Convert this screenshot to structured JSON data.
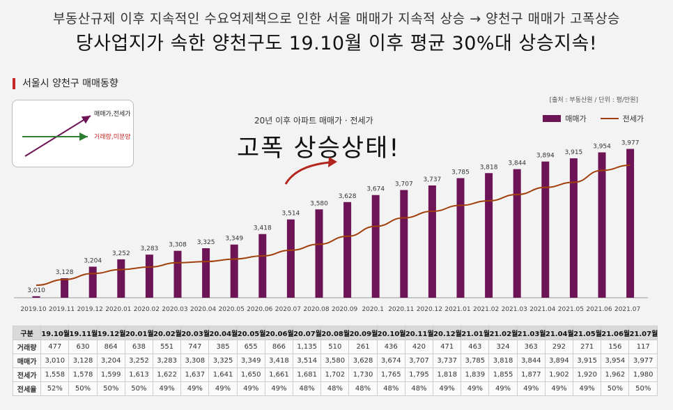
{
  "headline": {
    "line1": "부동산규제 이후 지속적인 수요억제책으로 인한 서울 매매가 지속적 상승 → 양천구 매매가 고폭상승",
    "line2": "당사업지가 속한 양천구도 19.10월 이후 평균 30%대 상승지속!"
  },
  "section_title": "서울시 양천구 매매동향",
  "source_note": "[출처 : 부동산원 / 단위 : 평/만원]",
  "inset": {
    "label_up": "매매가,전세가",
    "label_flat": "거래량,미분양",
    "colors": {
      "up": "#6d1456",
      "flat": "#2e7d32",
      "label_flat": "#c62828"
    }
  },
  "annotation": {
    "small": "20년 이후 아파트 매매가 · 전세가",
    "big": "고폭 상승상태!"
  },
  "chart_data": {
    "type": "bar",
    "categories": [
      "2019.10",
      "2019.11",
      "2019.12",
      "2020.01",
      "2020.02",
      "2020.03",
      "2020.04",
      "2020.05",
      "2020.06",
      "2020.07",
      "2020.08",
      "2020.09",
      "2020.1",
      "2020.11",
      "2020.12",
      "2021.01",
      "2021.02",
      "2021.03",
      "2021.04",
      "2021.05",
      "2021.06",
      "2021.07"
    ],
    "series": [
      {
        "name": "매매가",
        "type": "bar",
        "color": "#6d1456",
        "values": [
          3010,
          3128,
          3204,
          3252,
          3283,
          3308,
          3325,
          3349,
          3418,
          3514,
          3580,
          3628,
          3674,
          3707,
          3737,
          3785,
          3818,
          3844,
          3894,
          3915,
          3954,
          3977
        ],
        "labels": [
          "3,010",
          "3,128",
          "3,204",
          "3,252",
          "3,283",
          "3,308",
          "3,325",
          "3,349",
          "3,418",
          "3,514",
          "3,580",
          "3,628",
          "3,674",
          "3,707",
          "3,737",
          "3,785",
          "3,818",
          "3,844",
          "3,894",
          "3,915",
          "3,954",
          "3,977"
        ]
      },
      {
        "name": "전세가",
        "type": "line",
        "color": "#a1400c",
        "values": [
          1558,
          1578,
          1599,
          1613,
          1622,
          1637,
          1641,
          1650,
          1661,
          1681,
          1702,
          1730,
          1765,
          1795,
          1818,
          1839,
          1855,
          1877,
          1902,
          1920,
          1962,
          1980
        ]
      }
    ],
    "legend_position": "top-right",
    "grid": false
  },
  "table": {
    "header": [
      "구분",
      "19.10월",
      "19.11월",
      "19.12월",
      "20.01월",
      "20.02월",
      "20.03월",
      "20.04월",
      "20.05월",
      "20.06월",
      "20.07월",
      "20.08월",
      "20.09월",
      "20.10월",
      "20.11월",
      "20.12월",
      "21.01월",
      "21.02월",
      "21.03월",
      "21.04월",
      "21.05월",
      "21.06월",
      "21.07월"
    ],
    "rows": [
      {
        "label": "거래량",
        "cells": [
          "477",
          "630",
          "864",
          "638",
          "551",
          "747",
          "385",
          "655",
          "866",
          "1,135",
          "510",
          "261",
          "436",
          "420",
          "471",
          "463",
          "324",
          "363",
          "292",
          "271",
          "156",
          "117"
        ]
      },
      {
        "label": "매매가",
        "cells": [
          "3,010",
          "3,128",
          "3,204",
          "3,252",
          "3,283",
          "3,308",
          "3,325",
          "3,349",
          "3,418",
          "3,514",
          "3,580",
          "3,628",
          "3,674",
          "3,707",
          "3,737",
          "3,785",
          "3,818",
          "3,844",
          "3,894",
          "3,915",
          "3,954",
          "3,977"
        ]
      },
      {
        "label": "전세가",
        "cells": [
          "1,558",
          "1,578",
          "1,599",
          "1,613",
          "1,622",
          "1,637",
          "1,641",
          "1,650",
          "1,661",
          "1,681",
          "1,702",
          "1,730",
          "1,765",
          "1,795",
          "1,818",
          "1,839",
          "1,855",
          "1,877",
          "1,902",
          "1,920",
          "1,962",
          "1,980"
        ]
      },
      {
        "label": "전세율",
        "cells": [
          "52%",
          "50%",
          "50%",
          "50%",
          "49%",
          "49%",
          "49%",
          "49%",
          "49%",
          "48%",
          "48%",
          "48%",
          "48%",
          "48%",
          "49%",
          "49%",
          "49%",
          "49%",
          "49%",
          "49%",
          "50%",
          "50%"
        ]
      }
    ]
  }
}
